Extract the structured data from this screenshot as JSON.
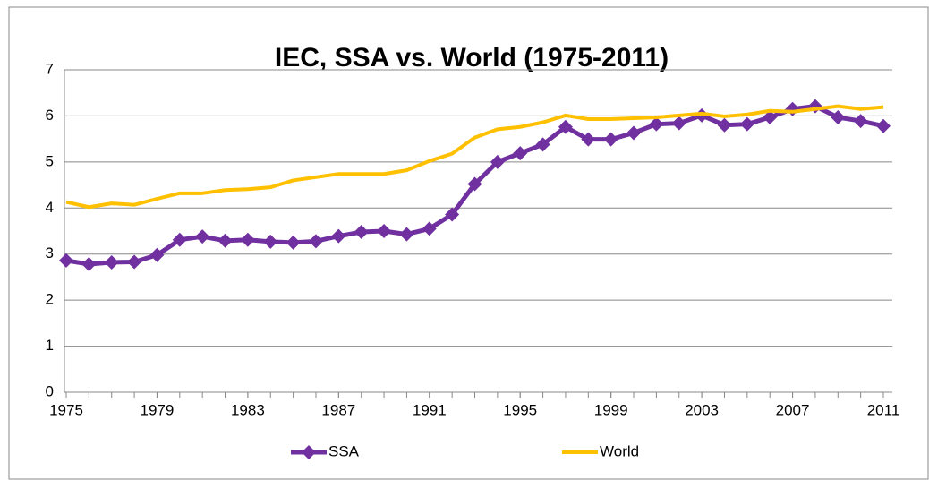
{
  "chart_data": {
    "type": "line",
    "title": "IEC, SSA vs. World (1975-2011)",
    "x": [
      1975,
      1976,
      1977,
      1978,
      1979,
      1980,
      1981,
      1982,
      1983,
      1984,
      1985,
      1986,
      1987,
      1988,
      1989,
      1990,
      1991,
      1992,
      1993,
      1994,
      1995,
      1996,
      1997,
      1998,
      1999,
      2000,
      2001,
      2002,
      2003,
      2004,
      2005,
      2006,
      2007,
      2008,
      2009,
      2010,
      2011
    ],
    "series": [
      {
        "name": "SSA",
        "color": "#7030a0",
        "marker": "diamond",
        "values": [
          2.86,
          2.78,
          2.82,
          2.83,
          2.98,
          3.31,
          3.38,
          3.29,
          3.31,
          3.27,
          3.25,
          3.28,
          3.39,
          3.48,
          3.5,
          3.43,
          3.55,
          3.86,
          4.52,
          5.0,
          5.19,
          5.38,
          5.76,
          5.49,
          5.49,
          5.63,
          5.82,
          5.84,
          6.01,
          5.8,
          5.82,
          5.97,
          6.15,
          6.21,
          5.97,
          5.89,
          5.78
        ]
      },
      {
        "name": "World",
        "color": "#ffc000",
        "values": [
          4.13,
          4.02,
          4.1,
          4.07,
          4.2,
          4.32,
          4.32,
          4.39,
          4.41,
          4.45,
          4.6,
          4.67,
          4.74,
          4.74,
          4.74,
          4.82,
          5.02,
          5.18,
          5.53,
          5.71,
          5.76,
          5.86,
          6.01,
          5.93,
          5.93,
          5.95,
          5.97,
          6.01,
          6.05,
          5.99,
          6.03,
          6.11,
          6.09,
          6.15,
          6.21,
          6.15,
          6.19
        ]
      }
    ],
    "xlim": [
      1975,
      2011
    ],
    "xticks": [
      1975,
      1979,
      1983,
      1987,
      1991,
      1995,
      1999,
      2003,
      2007,
      2011
    ],
    "ylim": [
      0,
      7
    ],
    "yticks": [
      0,
      1,
      2,
      3,
      4,
      5,
      6,
      7
    ],
    "grid": true,
    "legend": "bottom"
  }
}
